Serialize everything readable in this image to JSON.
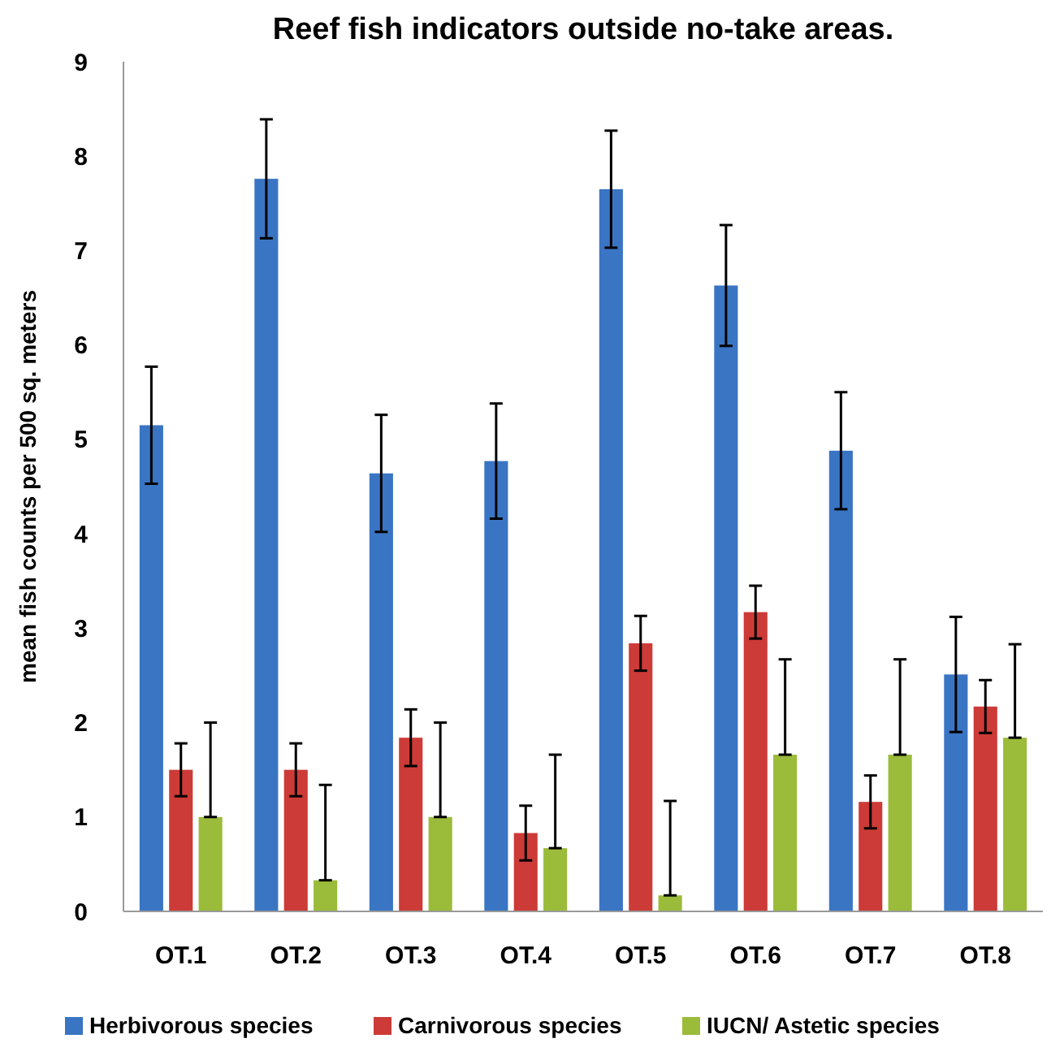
{
  "chart_data": {
    "type": "bar",
    "title": "Reef fish indicators outside no-take areas.",
    "ylabel": "mean fish counts per 500 sq. meters",
    "categories": [
      "OT.1",
      "OT.2",
      "OT.3",
      "OT.4",
      "OT.5",
      "OT.6",
      "OT.7",
      "OT.8"
    ],
    "series": [
      {
        "name": "Herbivorous species",
        "color": "#3a75c4",
        "values": [
          5.15,
          7.76,
          4.64,
          4.77,
          7.65,
          6.63,
          4.88,
          2.51
        ],
        "errors": [
          0.62,
          0.63,
          0.62,
          0.61,
          0.62,
          0.64,
          0.62,
          0.61
        ]
      },
      {
        "name": "Carnivorous species",
        "color": "#cc3b37",
        "values": [
          1.5,
          1.5,
          1.84,
          0.83,
          2.84,
          3.17,
          1.16,
          2.17
        ],
        "errors": [
          0.28,
          0.28,
          0.3,
          0.29,
          0.29,
          0.28,
          0.28,
          0.28
        ]
      },
      {
        "name": "IUCN/ Astetic species",
        "color": "#9bbb3a",
        "values": [
          1.0,
          0.33,
          1.0,
          0.67,
          0.17,
          1.66,
          1.66,
          1.84
        ],
        "errors": [
          [
            1.0,
            2.0
          ],
          [
            0.33,
            1.34
          ],
          [
            1.0,
            2.0
          ],
          [
            0.67,
            1.66
          ],
          [
            0.17,
            1.17
          ],
          [
            1.66,
            2.67
          ],
          [
            1.66,
            2.67
          ],
          [
            1.84,
            2.83
          ]
        ]
      }
    ],
    "ylim": [
      0,
      9
    ],
    "yticks": [
      0,
      1,
      2,
      3,
      4,
      5,
      6,
      7,
      8,
      9
    ],
    "grid": false,
    "legend": "bottom"
  }
}
